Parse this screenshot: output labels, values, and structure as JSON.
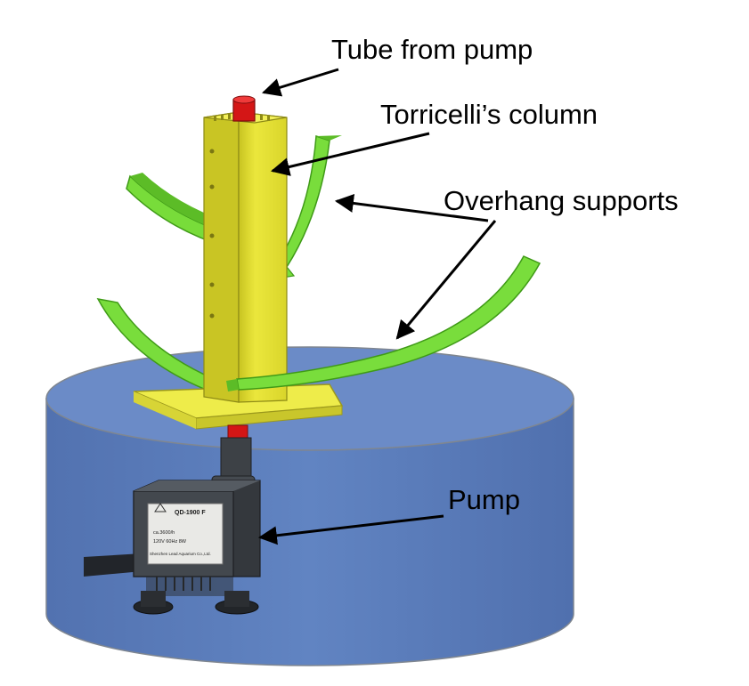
{
  "labels": {
    "tube": "Tube from pump",
    "column": "Torricelli’s column",
    "supports": "Overhang supports",
    "pump": "Pump"
  },
  "pump_plate": {
    "model": "QD-1900 F",
    "line2": "ca.3600/h",
    "line3": "120V  60Hz  8W",
    "line4": "Shenzhen Lead Aquarium Co.,Ltd."
  },
  "colors": {
    "tank_body": "#5b7cba",
    "tank_top": "#6d8dc8",
    "column": "#e6e235",
    "column_shade": "#b9b51c",
    "base_plate": "#f0ee45",
    "supports": "#79dd3c",
    "supports_shade": "#4fae1f",
    "tube": "#d71818",
    "pump": "#3b3f44",
    "arrow": "#000000"
  }
}
